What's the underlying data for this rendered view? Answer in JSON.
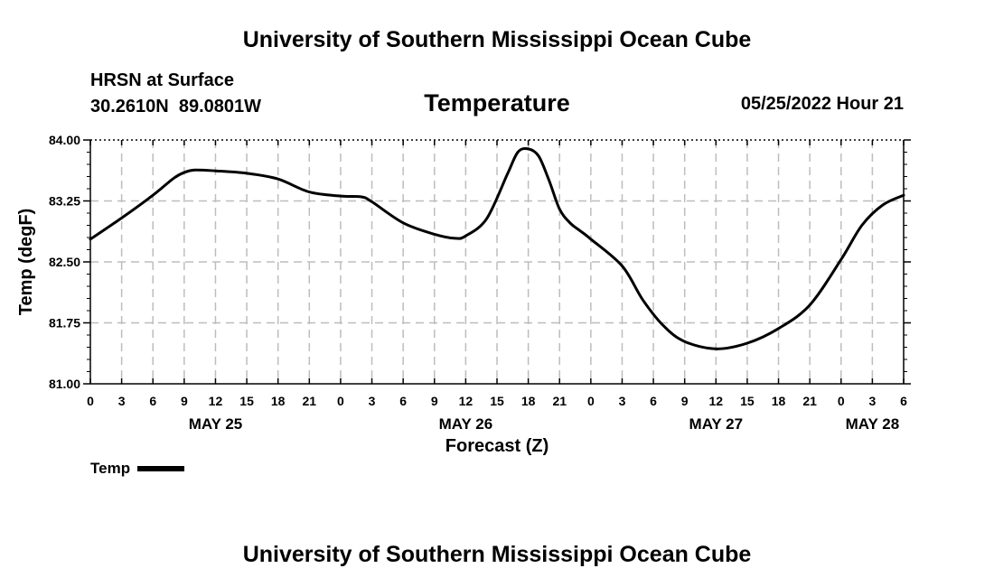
{
  "header": {
    "org_title": "University of Southern Mississippi Ocean Cube",
    "station_name": "HRSN at Surface",
    "station_coords": "30.2610N  89.0801W",
    "datetime": "05/25/2022 Hour 21"
  },
  "footer": {
    "org_title": "University of Southern Mississippi Ocean Cube"
  },
  "legend": {
    "label": "Temp"
  },
  "chart_data": {
    "type": "line",
    "title": "Temperature",
    "xlabel": "Forecast (Z)",
    "ylabel": "Temp (degF)",
    "xlim": [
      0,
      78
    ],
    "ylim": [
      81.0,
      84.0
    ],
    "y_ticks": [
      81.0,
      81.75,
      82.5,
      83.25,
      84.0
    ],
    "y_tick_labels": [
      "81.00",
      "81.75",
      "82.50",
      "83.25",
      "84.00"
    ],
    "x_ticks": [
      0,
      3,
      6,
      9,
      12,
      15,
      18,
      21,
      24,
      27,
      30,
      33,
      36,
      39,
      42,
      45,
      48,
      51,
      54,
      57,
      60,
      63,
      66,
      69,
      72,
      75,
      78
    ],
    "x_tick_labels": [
      "0",
      "3",
      "6",
      "9",
      "12",
      "15",
      "18",
      "21",
      "0",
      "3",
      "6",
      "9",
      "12",
      "15",
      "18",
      "21",
      "0",
      "3",
      "6",
      "9",
      "12",
      "15",
      "18",
      "21",
      "0",
      "3",
      "6"
    ],
    "day_labels": [
      {
        "hour": 12,
        "label": "MAY 25"
      },
      {
        "hour": 36,
        "label": "MAY 26"
      },
      {
        "hour": 60,
        "label": "MAY 27"
      },
      {
        "hour": 75,
        "label": "MAY 28"
      }
    ],
    "grid": true,
    "series": [
      {
        "name": "Temp",
        "x": [
          0,
          3,
          6,
          8,
          9,
          10,
          12,
          15,
          18,
          21,
          24,
          26,
          27,
          30,
          33,
          35,
          36,
          38,
          40,
          41,
          42,
          43,
          44,
          45,
          46,
          47,
          48,
          51,
          53,
          55,
          57,
          60,
          63,
          66,
          69,
          72,
          74,
          76,
          78
        ],
        "y": [
          82.78,
          83.04,
          83.32,
          83.53,
          83.6,
          83.63,
          83.62,
          83.59,
          83.52,
          83.36,
          83.31,
          83.3,
          83.24,
          82.98,
          82.84,
          82.79,
          82.82,
          83.03,
          83.58,
          83.85,
          83.89,
          83.8,
          83.5,
          83.15,
          82.98,
          82.88,
          82.78,
          82.45,
          82.03,
          81.71,
          81.52,
          81.43,
          81.5,
          81.68,
          81.97,
          82.53,
          82.95,
          83.2,
          83.32
        ]
      }
    ]
  }
}
